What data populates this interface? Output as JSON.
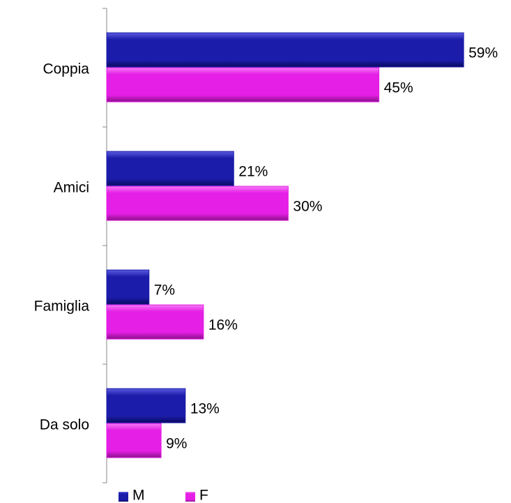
{
  "chart_data": {
    "type": "bar",
    "orientation": "horizontal",
    "categories": [
      "Coppia",
      "Amici",
      "Famiglia",
      "Da solo"
    ],
    "series": [
      {
        "name": "M",
        "color": "#1c1caa",
        "values": [
          59,
          21,
          7,
          13
        ],
        "value_labels": [
          "59%",
          "21%",
          "7%",
          "13%"
        ]
      },
      {
        "name": "F",
        "color": "#e51fe5",
        "values": [
          45,
          30,
          16,
          9
        ],
        "value_labels": [
          "45%",
          "30%",
          "16%",
          "9%"
        ]
      }
    ],
    "legend": "bottom"
  }
}
